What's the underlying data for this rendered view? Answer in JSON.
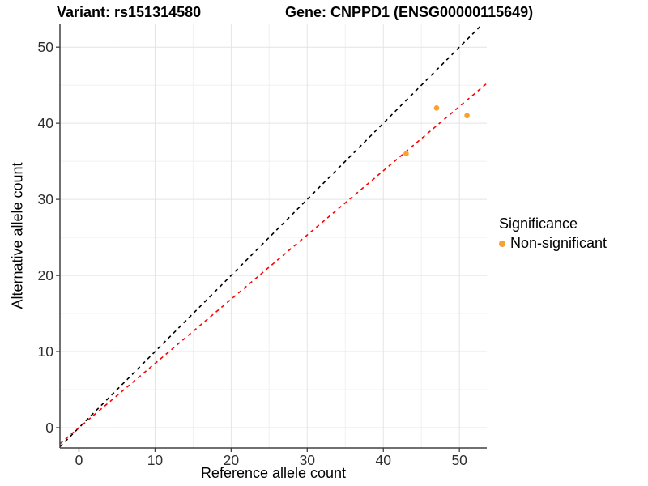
{
  "header": {
    "variant_title": "Variant: rs151314580",
    "gene_title": "Gene: CNPPD1 (ENSG00000115649)"
  },
  "axes": {
    "x_label": "Reference allele count",
    "y_label": "Alternative allele count"
  },
  "legend": {
    "title": "Significance",
    "items": [
      {
        "label": "Non-significant",
        "color": "#F9A22B"
      }
    ]
  },
  "chart_data": {
    "type": "scatter",
    "title": "Variant: rs151314580 | Gene: CNPPD1 (ENSG00000115649)",
    "xlabel": "Reference allele count",
    "ylabel": "Alternative allele count",
    "xlim": [
      -2.5,
      53.6
    ],
    "ylim": [
      -2.66,
      53.0
    ],
    "x_ticks": [
      0,
      10,
      20,
      30,
      40,
      50
    ],
    "y_ticks": [
      0,
      10,
      20,
      30,
      40,
      50
    ],
    "grid": {
      "major": true,
      "minor": true
    },
    "legend_position": "right",
    "series": [
      {
        "name": "Non-significant",
        "color": "#F9A22B",
        "points": [
          [
            47,
            42
          ],
          [
            51,
            41
          ],
          [
            43,
            36
          ]
        ]
      }
    ],
    "ref_lines": [
      {
        "name": "identity-line",
        "slope": 1.0,
        "intercept": 0,
        "color": "#000000",
        "style": "dashed"
      },
      {
        "name": "expected-ratio-line",
        "slope": 0.844,
        "intercept": 0,
        "color": "#FF0000",
        "style": "dashed"
      }
    ]
  },
  "style_colors": {
    "grid_major": "#E4E4E4",
    "grid_minor": "#F1F1F1",
    "axis_line": "#404040",
    "tick_label": "#2E2E2E"
  }
}
